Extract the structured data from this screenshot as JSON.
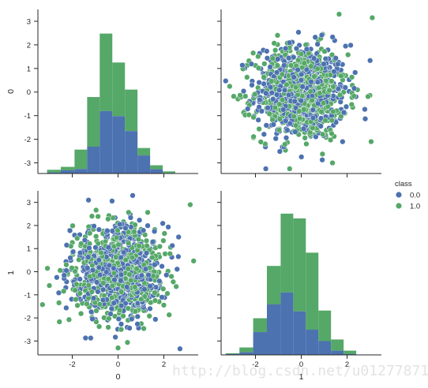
{
  "chart_data": {
    "type": "scatter",
    "variables": [
      "0",
      "1"
    ],
    "colors": {
      "0.0": "#4c72b0",
      "1.0": "#55a868"
    },
    "legend": {
      "title": "class",
      "labels": [
        "0.0",
        "1.0"
      ],
      "placement": "right"
    },
    "grid": false,
    "panels": [
      {
        "row": 0,
        "col": 0,
        "type": "histogram",
        "ylabel": "0",
        "xlabel": "",
        "xlim": [
          -3.5,
          3.5
        ],
        "bins": [
          -3.1,
          -2.5,
          -1.9,
          -1.35,
          -0.8,
          -0.25,
          0.3,
          0.85,
          1.4,
          1.95,
          2.5,
          3.1
        ],
        "stacked_series": [
          {
            "name": "0.0",
            "counts": [
              0.04,
              0.12,
              0.17,
              1.01,
              2.35,
              2.16,
              1.6,
              0.68,
              0.16,
              0.02,
              0.0
            ]
          },
          {
            "name": "1.0",
            "counts": [
              0.1,
              0.13,
              0.73,
              1.87,
              2.92,
              2.02,
              1.56,
              0.28,
              0.15,
              0.06,
              0.0
            ]
          }
        ],
        "yticks": [
          -3,
          -2,
          -1,
          0,
          1,
          2,
          3
        ],
        "ylim": [
          -3.45,
          3.5
        ]
      },
      {
        "row": 0,
        "col": 1,
        "type": "scatter",
        "xlim": [
          -3.5,
          3.5
        ],
        "ylim": [
          -3.45,
          3.5
        ],
        "yticks": [
          -3,
          -2,
          -1,
          0,
          1,
          2,
          3
        ]
      },
      {
        "row": 1,
        "col": 0,
        "type": "scatter",
        "xlabel": "0",
        "ylabel": "1",
        "xlim": [
          -3.5,
          3.5
        ],
        "ylim": [
          -3.6,
          3.5
        ],
        "xticks": [
          -2,
          0,
          2
        ],
        "yticks": [
          -3,
          -2,
          -1,
          0,
          1,
          2,
          3
        ]
      },
      {
        "row": 1,
        "col": 1,
        "type": "histogram",
        "xlabel": "1",
        "xlim": [
          -3.5,
          3.5
        ],
        "bins": [
          -3.3,
          -2.7,
          -2.1,
          -1.5,
          -0.9,
          -0.35,
          0.2,
          0.75,
          1.3,
          1.85,
          2.4,
          2.9
        ],
        "stacked_series": [
          {
            "name": "0.0",
            "counts": [
              0.03,
              0.1,
              0.86,
              1.9,
              2.35,
              1.64,
              0.95,
              0.52,
              0.16,
              0.03,
              0.0
            ]
          },
          {
            "name": "1.0",
            "counts": [
              0.03,
              0.18,
              0.52,
              1.45,
              2.97,
              3.5,
              2.9,
              1.15,
              0.42,
              0.13,
              0.0
            ]
          }
        ],
        "xticks": [
          -2,
          0,
          2
        ]
      }
    ],
    "scatter_notable_points": {
      "panel_0_1": [
        {
          "x": 3.1,
          "y": 3.15,
          "class": "1.0"
        },
        {
          "x": -2.95,
          "y": -0.18,
          "class": "1.0"
        },
        {
          "x": 3.05,
          "y": -2.1,
          "class": "1.0"
        }
      ],
      "panel_1_0": [
        {
          "x": 3.15,
          "y": 2.9,
          "class": "1.0"
        },
        {
          "x": 0.0,
          "y": -3.3,
          "class": "1.0"
        },
        {
          "x": -3.0,
          "y": -0.6,
          "class": "1.0"
        }
      ]
    }
  },
  "watermark": "http://blog.csdn.net/u012778718"
}
